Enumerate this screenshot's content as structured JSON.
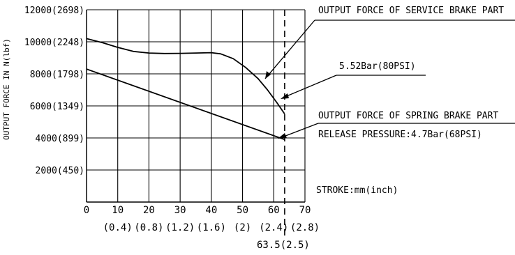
{
  "chart_data": {
    "type": "line",
    "ylabel": "OUTPUT FORCE IN N(lbf)",
    "xlabel": "STROKE:mm(inch)",
    "xlim": [
      0,
      70
    ],
    "ylim": [
      0,
      12000
    ],
    "grid": true,
    "y_ticks": [
      {
        "value": 2000,
        "label": "2000(450)"
      },
      {
        "value": 4000,
        "label": "4000(899)"
      },
      {
        "value": 6000,
        "label": "6000(1349)"
      },
      {
        "value": 8000,
        "label": "8000(1798)"
      },
      {
        "value": 10000,
        "label": "10000(2248)"
      },
      {
        "value": 12000,
        "label": "12000(2698)"
      }
    ],
    "x_ticks": [
      {
        "value": 0,
        "label": "0",
        "sub": ""
      },
      {
        "value": 10,
        "label": "10",
        "sub": "(0.4)"
      },
      {
        "value": 20,
        "label": "20",
        "sub": "(0.8)"
      },
      {
        "value": 30,
        "label": "30",
        "sub": "(1.2)"
      },
      {
        "value": 40,
        "label": "40",
        "sub": "(1.6)"
      },
      {
        "value": 50,
        "label": "50",
        "sub": "(2)"
      },
      {
        "value": 60,
        "label": "60",
        "sub": "(2.4)"
      },
      {
        "value": 70,
        "label": "70",
        "sub": "(2.8)"
      }
    ],
    "series": [
      {
        "name": "OUTPUT FORCE OF SERVICE BRAKE PART",
        "x": [
          0,
          5,
          10,
          15,
          20,
          25,
          30,
          35,
          40,
          43,
          47,
          51,
          55,
          58,
          61,
          63.5
        ],
        "y": [
          10200,
          9950,
          9650,
          9400,
          9300,
          9270,
          9280,
          9300,
          9320,
          9250,
          8950,
          8400,
          7700,
          7000,
          6200,
          5500
        ]
      },
      {
        "name": "OUTPUT FORCE OF SPRING BRAKE PART",
        "x": [
          0,
          63.5
        ],
        "y": [
          8300,
          3900
        ]
      }
    ],
    "marker": {
      "x": 63.5,
      "label": "63.5(2.5)"
    },
    "annotations": [
      {
        "text": "5.52Bar(80PSI)"
      },
      {
        "text": "RELEASE PRESSURE:4.7Bar(68PSI)"
      }
    ]
  }
}
